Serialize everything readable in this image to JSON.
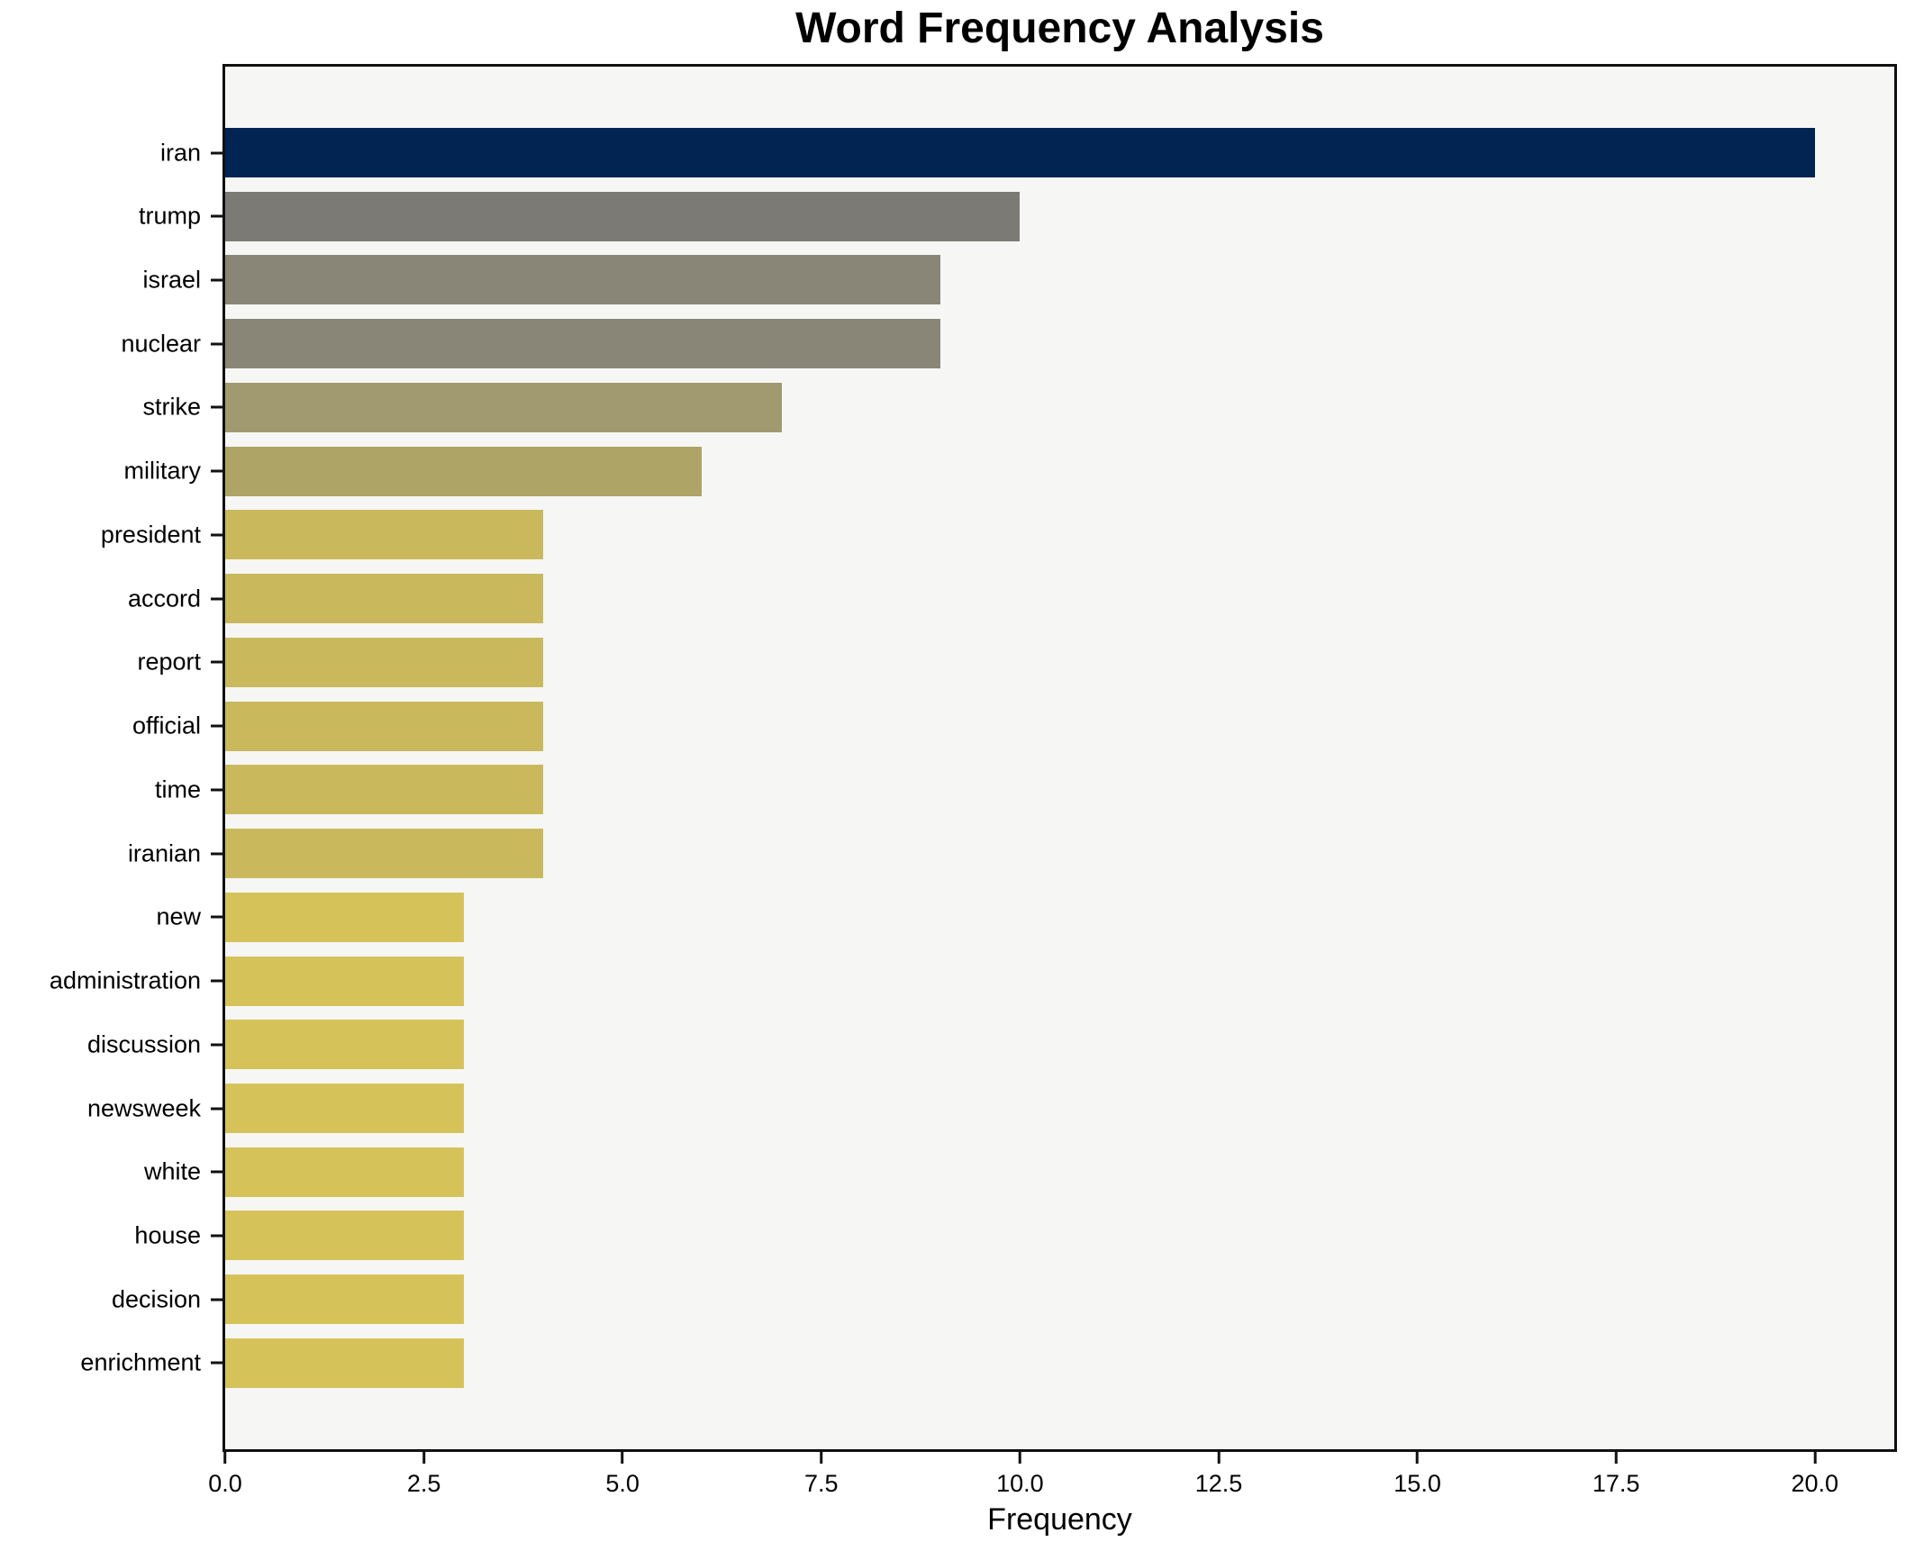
{
  "chart_data": {
    "type": "bar",
    "orientation": "horizontal",
    "title": "Word Frequency Analysis",
    "xlabel": "Frequency",
    "ylabel": "",
    "categories": [
      "iran",
      "trump",
      "israel",
      "nuclear",
      "strike",
      "military",
      "president",
      "accord",
      "report",
      "official",
      "time",
      "iranian",
      "new",
      "administration",
      "discussion",
      "newsweek",
      "white",
      "house",
      "decision",
      "enrichment"
    ],
    "values": [
      20,
      10,
      9,
      9,
      7,
      6,
      4,
      4,
      4,
      4,
      4,
      4,
      3,
      3,
      3,
      3,
      3,
      3,
      3,
      3
    ],
    "bar_colors": [
      "#012453",
      "#7b7a75",
      "#898678",
      "#898678",
      "#a19a70",
      "#ada465",
      "#c9b95c",
      "#c9b95c",
      "#c9b95c",
      "#c9b95c",
      "#c9b95c",
      "#c9b95c",
      "#d5c35a",
      "#d5c35a",
      "#d5c35a",
      "#d5c35a",
      "#d5c35a",
      "#d5c35a",
      "#d5c35a",
      "#d5c35a"
    ],
    "xlim": [
      0,
      21
    ],
    "xticks": [
      0.0,
      2.5,
      5.0,
      7.5,
      10.0,
      12.5,
      15.0,
      17.5,
      20.0
    ],
    "grid": false,
    "legend": null,
    "plot_bg": "#f6f6f4",
    "figure_bg": "#ffffff",
    "spine_color": "#111111"
  }
}
